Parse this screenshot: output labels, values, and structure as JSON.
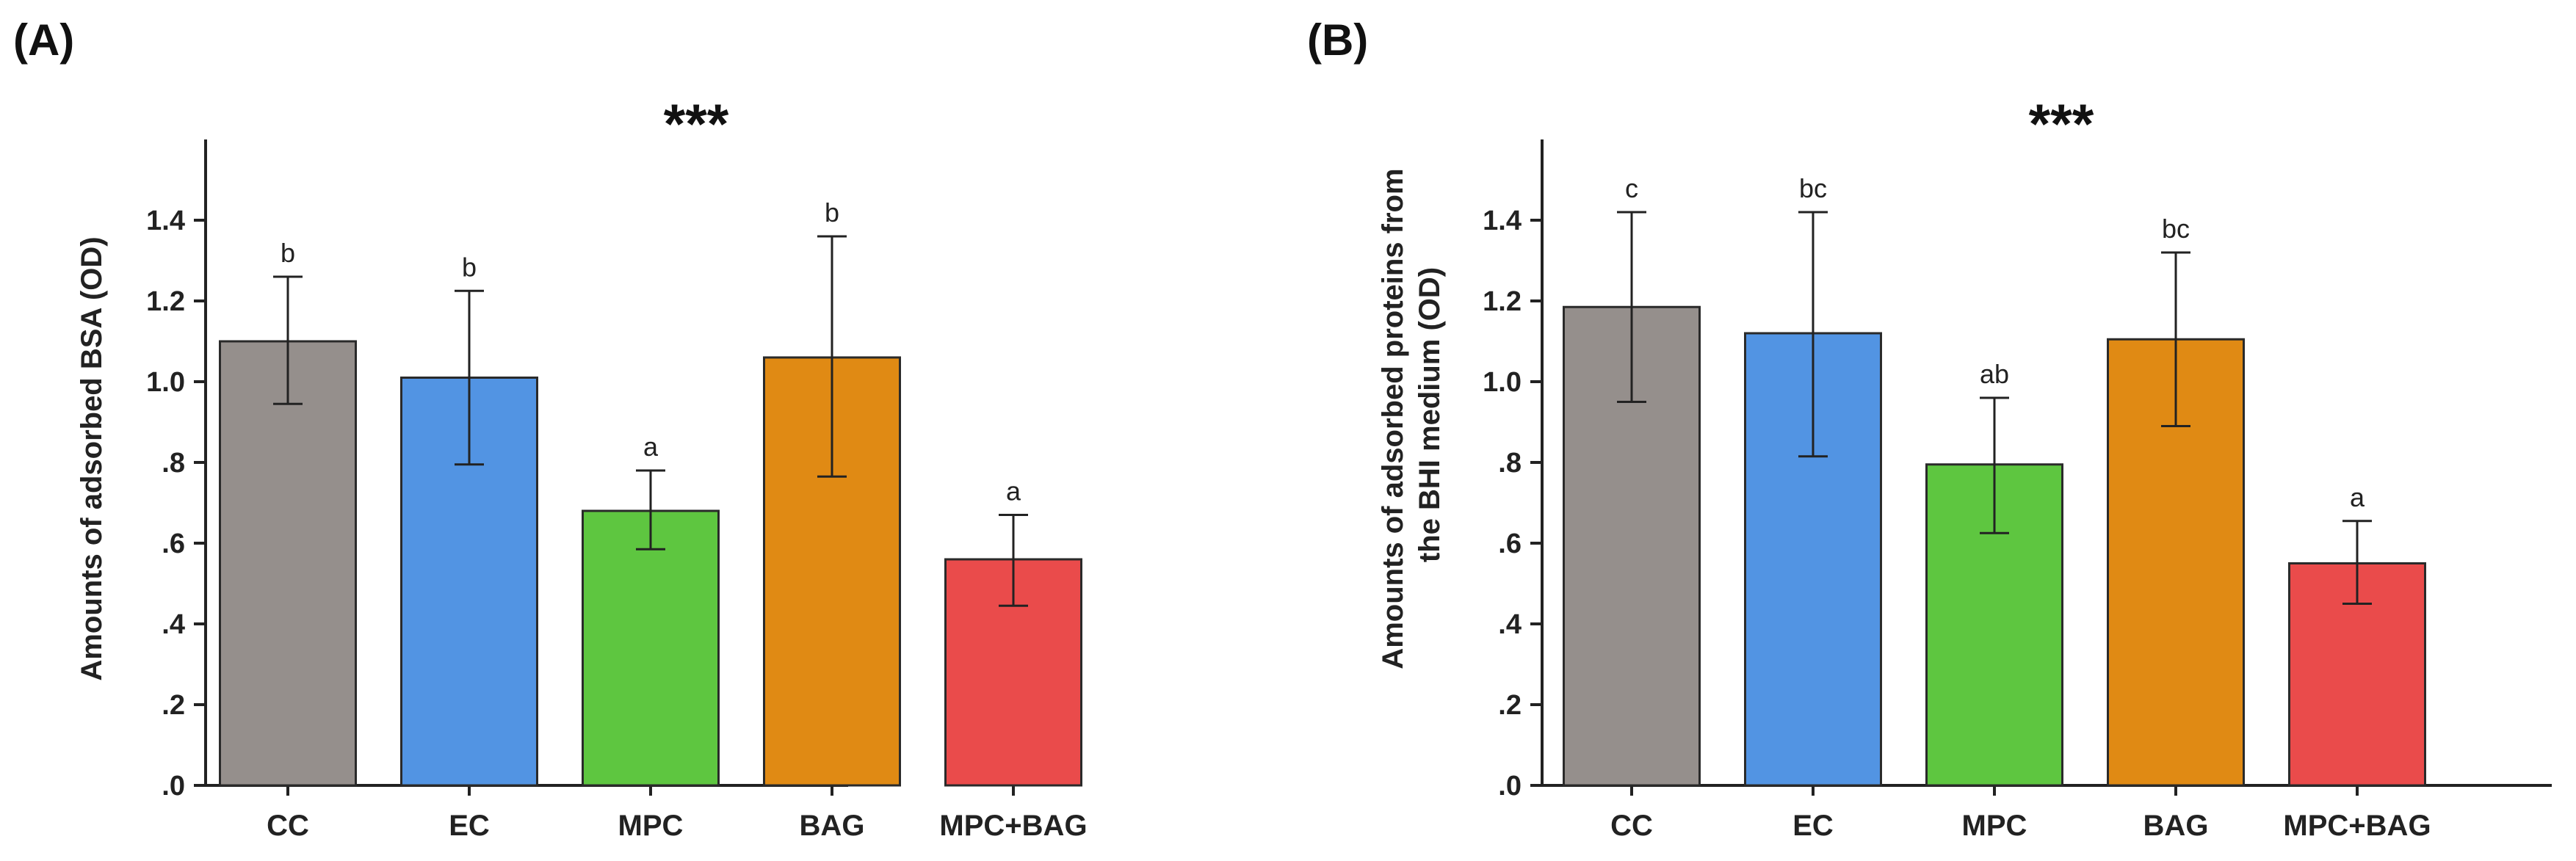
{
  "chart_data": [
    {
      "type": "bar",
      "panel_label": "(A)",
      "significance": "***",
      "ylabel_lines": [
        "Amounts of adsorbed BSA (OD)"
      ],
      "xlabel": "",
      "ylim": [
        0,
        1.6
      ],
      "yticks": [
        0,
        0.2,
        0.4,
        0.6,
        0.8,
        1.0,
        1.2,
        1.4
      ],
      "ytick_labels": [
        ".0",
        ".2",
        ".4",
        ".6",
        ".8",
        "1.0",
        "1.2",
        "1.4"
      ],
      "categories": [
        "CC",
        "EC",
        "MPC",
        "BAG",
        "MPC+BAG"
      ],
      "values": [
        1.1,
        1.01,
        0.68,
        1.06,
        0.56
      ],
      "error_lower": [
        0.945,
        0.795,
        0.585,
        0.765,
        0.445
      ],
      "error_upper": [
        1.26,
        1.225,
        0.78,
        1.36,
        0.67
      ],
      "group_letters": [
        "b",
        "b",
        "a",
        "b",
        "a"
      ],
      "colors": [
        "#958f8c",
        "#5294e3",
        "#5ec640",
        "#e08a14",
        "#ea4b4b"
      ]
    },
    {
      "type": "bar",
      "panel_label": "(B)",
      "significance": "***",
      "ylabel_lines": [
        "Amounts of adsorbed proteins from",
        "the BHI medium (OD)"
      ],
      "xlabel": "",
      "ylim": [
        0,
        1.6
      ],
      "yticks": [
        0,
        0.2,
        0.4,
        0.6,
        0.8,
        1.0,
        1.2,
        1.4
      ],
      "ytick_labels": [
        ".0",
        ".2",
        ".4",
        ".6",
        ".8",
        "1.0",
        "1.2",
        "1.4"
      ],
      "categories": [
        "CC",
        "EC",
        "MPC",
        "BAG",
        "MPC+BAG"
      ],
      "values": [
        1.185,
        1.12,
        0.795,
        1.105,
        0.55
      ],
      "error_lower": [
        0.95,
        0.815,
        0.625,
        0.89,
        0.45
      ],
      "error_upper": [
        1.42,
        1.42,
        0.96,
        1.32,
        0.655
      ],
      "group_letters": [
        "c",
        "bc",
        "ab",
        "bc",
        "a"
      ],
      "colors": [
        "#958f8c",
        "#5294e3",
        "#5ec640",
        "#e08a14",
        "#ea4b4b"
      ]
    }
  ]
}
